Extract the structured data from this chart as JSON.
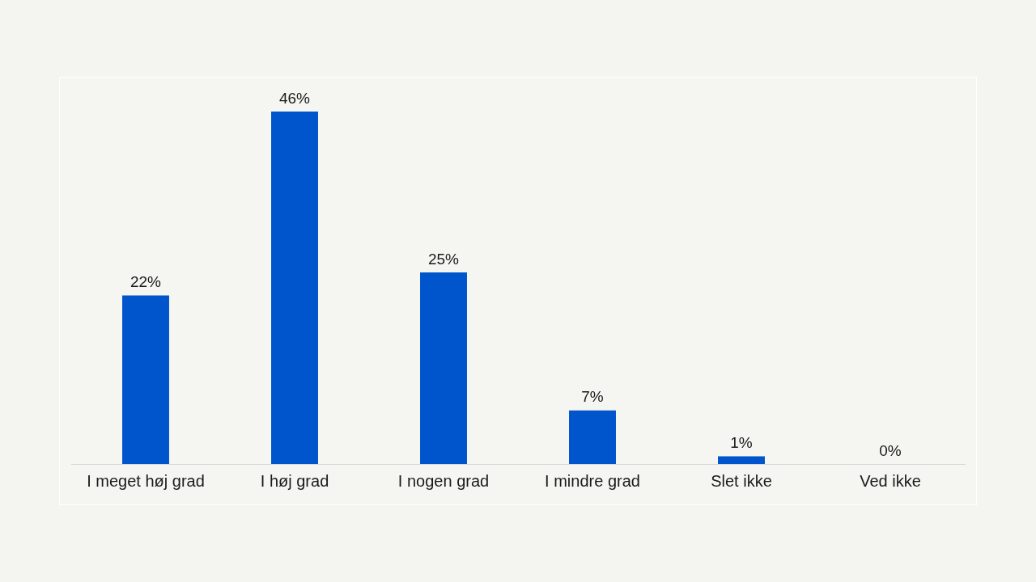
{
  "chart_data": {
    "type": "bar",
    "categories": [
      "I meget høj grad",
      "I høj grad",
      "I nogen grad",
      "I mindre grad",
      "Slet ikke",
      "Ved ikke"
    ],
    "values": [
      22,
      46,
      25,
      7,
      1,
      0
    ],
    "value_labels": [
      "22%",
      "46%",
      "25%",
      "7%",
      "1%",
      "0%"
    ],
    "color": "#0055cc",
    "grid": false,
    "legend": false
  }
}
